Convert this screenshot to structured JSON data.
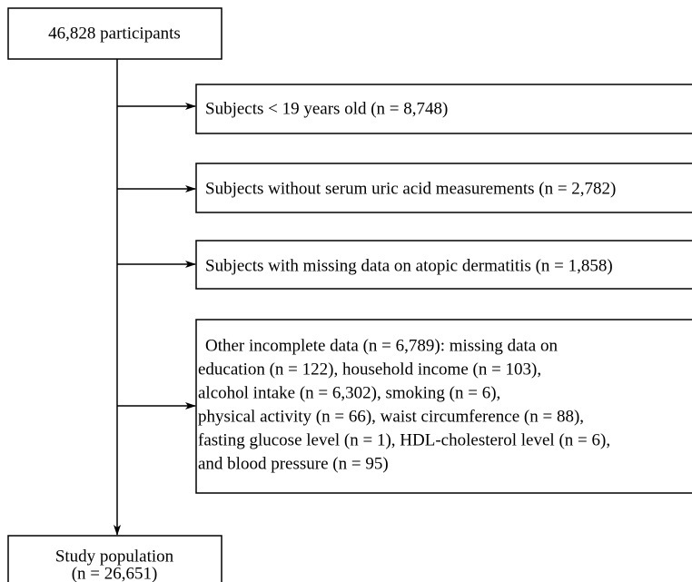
{
  "top": {
    "label": "46,828 participants"
  },
  "exclusions": [
    {
      "lines": [
        "Subjects < 19 years old (n = 8,748)"
      ]
    },
    {
      "lines": [
        "Subjects without serum uric acid measurements (n = 2,782)"
      ]
    },
    {
      "lines": [
        "Subjects with missing data on atopic dermatitis (n = 1,858)"
      ]
    },
    {
      "lines": [
        "Other incomplete data (n = 6,789): missing data on",
        "education (n = 122), household income (n = 103),",
        "alcohol intake (n = 6,302), smoking (n = 6),",
        "physical activity (n = 66), waist circumference (n = 88),",
        "fasting glucose level (n = 1), HDL-cholesterol level (n = 6),",
        "and blood pressure (n = 95)"
      ]
    }
  ],
  "result": {
    "lines": [
      "Study population",
      "(n = 26,651)"
    ]
  }
}
